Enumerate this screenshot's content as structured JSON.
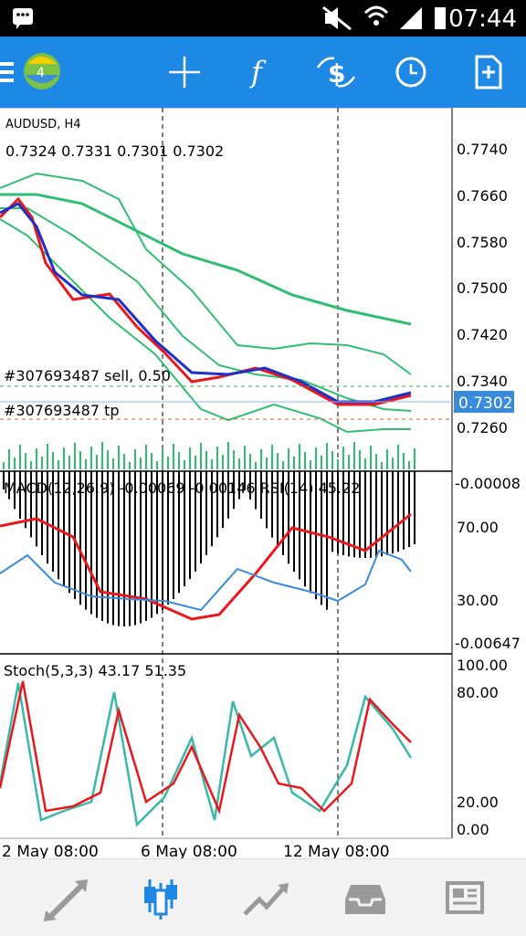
{
  "status_bar": {
    "time": "07:44"
  },
  "toolbar": {
    "buttons": [
      {
        "name": "menu-button",
        "icon": "hamburger-menu-icon"
      },
      {
        "name": "crosshair-button",
        "icon": "crosshair-icon"
      },
      {
        "name": "indicators-button",
        "icon": "function-f-icon"
      },
      {
        "name": "symbol-button",
        "icon": "dollar-exchange-icon"
      },
      {
        "name": "timeframe-button",
        "icon": "clock-icon"
      },
      {
        "name": "new-order-button",
        "icon": "document-plus-icon"
      }
    ]
  },
  "chart": {
    "symbol_label": "AUDUSD, H4",
    "ohlc_label": "0.7324 0.7331 0.7301 0.7302",
    "order_label": "#307693487 sell, 0.50",
    "tp_label": "#307693487 tp",
    "current_price": "0.7302",
    "price_ticks": [
      "0.7740",
      "0.7660",
      "0.7580",
      "0.7500",
      "0.7420",
      "0.7340",
      "0.7260"
    ],
    "macd_rsi_label": "MACD(12,26,9) -0.00069 -0.00146 RSI(14) 45.22",
    "macd_ticks": [
      "-0.00008",
      "70.00",
      "30.00",
      "-0.00647"
    ],
    "stoch_label": "Stoch(5,3,3) 43.17 51.35",
    "stoch_ticks": [
      "100.00",
      "80.00",
      "20.00",
      "0.00"
    ],
    "time_labels": [
      "2 May 08:00",
      "6 May 08:00",
      "12 May 08:00"
    ]
  },
  "colors": {
    "toolbar_bg": "#1e88e5",
    "bull_candle": "#1f30c8",
    "bear_candle": "#e8181c",
    "ma_red": "#e8181c",
    "ma_blue": "#1f30c8",
    "bollinger": "#2fbf71",
    "rsi": "#3a8bdc",
    "stoch_main": "#3bb8a8",
    "stoch_signal": "#e8181c",
    "current_price_bg": "#3a8bdc"
  },
  "bottom_nav": {
    "items": [
      {
        "name": "quotes-nav",
        "icon": "arrows-updown-icon"
      },
      {
        "name": "chart-nav",
        "icon": "candlestick-chart-icon",
        "active": true
      },
      {
        "name": "trade-nav",
        "icon": "trend-line-icon"
      },
      {
        "name": "history-nav",
        "icon": "inbox-tray-icon"
      },
      {
        "name": "news-nav",
        "icon": "newspaper-icon"
      }
    ]
  }
}
